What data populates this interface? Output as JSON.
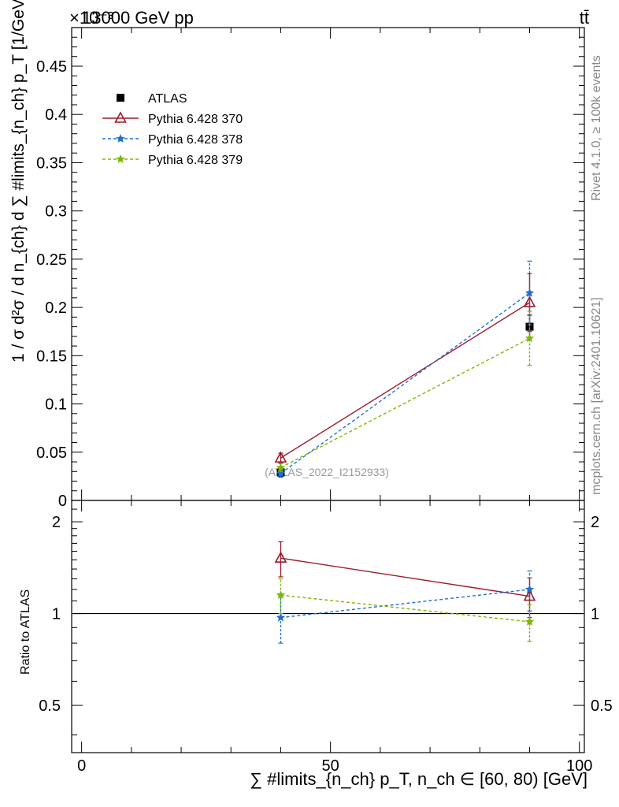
{
  "header": {
    "left_label": "13000 GeV pp",
    "exponent_label": "×10⁻³",
    "right_label": "tt̄"
  },
  "side_labels": {
    "rivet": "Rivet 4.1.0, ≥ 100k events",
    "mcplots": "mcplots.cern.ch [arXiv:2401.10621]"
  },
  "analysis_label": "(ATLAS_2022_I2152933)",
  "chart_data": [
    {
      "type": "scatter",
      "panel": "main",
      "ylabel": "1 / σ d²σ / d n_{ch} d ∑ #limits_{n_ch} p_T [1/GeV]",
      "xlim": [
        -2,
        101
      ],
      "ylim": [
        0,
        0.49
      ],
      "yticks": [
        0,
        0.05,
        0.1,
        0.15,
        0.2,
        0.25,
        0.3,
        0.35,
        0.4,
        0.45
      ],
      "ytick_labels": [
        "0",
        "0.05",
        "0.1",
        "0.15",
        "0.2",
        "0.25",
        "0.3",
        "0.35",
        "0.4",
        "0.45"
      ],
      "legend_position": "top-left",
      "series": [
        {
          "name": "ATLAS",
          "color": "#000000",
          "marker": "square",
          "line": "none",
          "x": [
            40,
            90
          ],
          "y": [
            0.029,
            0.18
          ],
          "err": [
            0.004,
            0.012
          ]
        },
        {
          "name": "Pythia 6.428 370",
          "color": "#9b1b2c",
          "marker": "triangle-open",
          "line": "solid",
          "x": [
            40,
            90
          ],
          "y": [
            0.044,
            0.205
          ],
          "err": [
            0.005,
            0.03
          ]
        },
        {
          "name": "Pythia 6.428 378",
          "color": "#1f6fd1",
          "marker": "star",
          "line": "dashed",
          "x": [
            40,
            90
          ],
          "y": [
            0.028,
            0.215
          ],
          "err": [
            0.004,
            0.033
          ]
        },
        {
          "name": "Pythia 6.428 379",
          "color": "#7ab800",
          "marker": "star",
          "line": "dashed",
          "x": [
            40,
            90
          ],
          "y": [
            0.034,
            0.168
          ],
          "err": [
            0.004,
            0.028
          ]
        }
      ]
    },
    {
      "type": "scatter",
      "panel": "ratio",
      "ylabel": "Ratio to ATLAS",
      "xlabel": "∑ #limits_{n_ch} p_T, n_ch ∈ [60, 80) [GeV]",
      "xlim": [
        -2,
        101
      ],
      "ylim": [
        0.35,
        2.35
      ],
      "log_scale_y": true,
      "yticks": [
        0.5,
        1,
        2
      ],
      "ytick_labels": [
        "0.5",
        "1",
        "2"
      ],
      "xticks": [
        0,
        50,
        100
      ],
      "xtick_labels": [
        "0",
        "50",
        "100"
      ],
      "reference_line": 1,
      "series": [
        {
          "name": "Pythia 6.428 370",
          "color": "#9b1b2c",
          "marker": "triangle-open",
          "line": "solid",
          "x": [
            40,
            90
          ],
          "y": [
            1.52,
            1.14
          ],
          "err": [
            0.2,
            0.17
          ]
        },
        {
          "name": "Pythia 6.428 378",
          "color": "#1f6fd1",
          "marker": "star",
          "line": "dashed",
          "x": [
            40,
            90
          ],
          "y": [
            0.97,
            1.2
          ],
          "err": [
            0.17,
            0.18
          ]
        },
        {
          "name": "Pythia 6.428 379",
          "color": "#7ab800",
          "marker": "star",
          "line": "dashed",
          "x": [
            40,
            90
          ],
          "y": [
            1.15,
            0.94
          ],
          "err": [
            0.15,
            0.13
          ]
        }
      ]
    }
  ]
}
